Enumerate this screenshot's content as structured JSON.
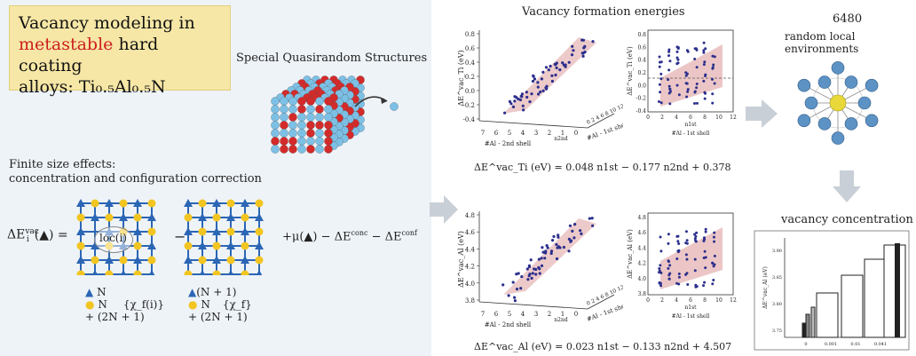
{
  "title": {
    "line1": "Vacancy modeling in",
    "line2_red": "metastable",
    "line2_rest": " hard coating",
    "line3_prefix": "alloys: ",
    "formula": "Ti₀.₅Al₀.₅N"
  },
  "sqs_label": "Special Quasirandom Structures",
  "finite_size": {
    "line1": "Finite size effects:",
    "line2": "concentration and configuration correction"
  },
  "equation": {
    "lhs": "ΔE",
    "lhs_sup": "vac",
    "lhs_sub": "i",
    "lhs_arg": "(▲) =",
    "loc": "loc(i)",
    "minus": "−",
    "mu": "+μ(▲) − ΔE",
    "conc_sup": "conc",
    "minus_conf": " − ΔE",
    "conf_sup": "conf"
  },
  "legend_left": {
    "n_tri": "N",
    "n_dot": "N",
    "chi": "{χ_f(i)}",
    "total": "+ (2N + 1)"
  },
  "legend_right": {
    "n_tri": "(N + 1)",
    "n_dot": "N",
    "chi": "{χ_f}",
    "total": "+ (2N + 1)"
  },
  "formation_title": "Vacancy formation energies",
  "plot_top": {
    "ylabel": "ΔE^vac_Ti (eV)",
    "yticks": [
      "0.8",
      "0.6",
      "0.4",
      "0.2",
      "0.0",
      "-0.2",
      "-0.4"
    ],
    "xticks": [
      "7",
      "6",
      "5",
      "4",
      "3",
      "2",
      "1",
      "0"
    ],
    "ztick_text": "0 2 4 6 8 10 12",
    "xlabel_n2": "n2nd",
    "xlabel": "#Al - 2nd shell",
    "zlabel": "#Al - 1st shell",
    "zlabel_n1": "n1st",
    "equation": "ΔE^vac_Ti (eV) = 0.048 n1st − 0.177 n2nd + 0.378"
  },
  "inset_top": {
    "yticks": [
      "0.8",
      "0.6",
      "0.4",
      "0.2",
      "0.0",
      "-0.2",
      "-0.4"
    ],
    "xticks": [
      "0",
      "2",
      "4",
      "6",
      "8",
      "10",
      "12"
    ],
    "xlabel": "#Al - 1st shell",
    "xsub": "n1st",
    "ylabel": "ΔE^vac_Ti (eV)"
  },
  "plot_bottom": {
    "ylabel": "ΔE^vac_Al (eV)",
    "yticks": [
      "4.8",
      "4.6",
      "4.4",
      "4.2",
      "4.0",
      "3.8"
    ],
    "xticks": [
      "7",
      "6",
      "5",
      "4",
      "3",
      "2",
      "1",
      "0"
    ],
    "ztick_text": "0 2 4 6 8 10 12",
    "xlabel_n2": "n2nd",
    "xlabel": "#Al - 2nd shell",
    "zlabel": "#Al - 1st shell",
    "equation": "ΔE^vac_Al (eV) = 0.023 n1st − 0.133 n2nd + 4.507"
  },
  "inset_bottom": {
    "yticks": [
      "4.8",
      "4.6",
      "4.4",
      "4.2",
      "4.0",
      "3.8"
    ],
    "xticks": [
      "0",
      "2",
      "4",
      "6",
      "8",
      "10",
      "12"
    ],
    "xlabel": "#Al - 1st shell",
    "xsub": "n1st",
    "ylabel": "ΔE^vac_Al (eV)"
  },
  "local_env": {
    "count": "6480",
    "label": "random local environments"
  },
  "vac_conc": {
    "title": "vacancy concentration",
    "ylabel": "ΔE^vac_Al (eV)",
    "yticks": [
      "3.90",
      "3.85",
      "3.80",
      "3.75"
    ],
    "xticks": [
      "0",
      "0.001",
      "0.01",
      "0.041"
    ]
  },
  "colors": {
    "left_bg": "#eef3f8",
    "title_bg": "#f6e7a6",
    "red": "#cc1f1f",
    "blue_atom": "#7cc0e6",
    "red_atom": "#d42a2a",
    "lattice": "#2b66b5",
    "yellow_dot": "#f2c521",
    "band": "#e7b8b8",
    "point": "#2b2f8c",
    "arrow": "#c9cfd6"
  }
}
